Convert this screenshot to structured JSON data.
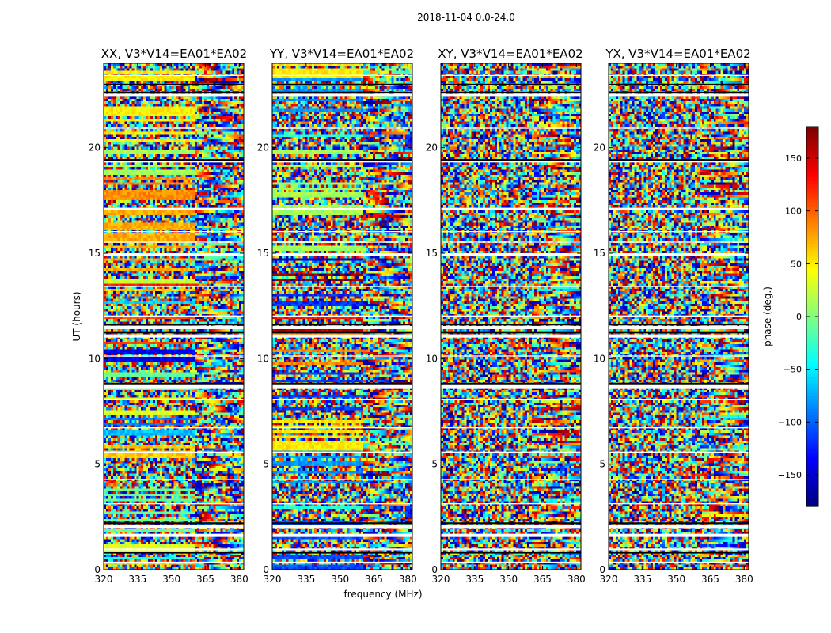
{
  "chart_data": {
    "type": "heatmap",
    "suptitle": "2018-11-04 0.0-24.0",
    "xlabel": "frequency (MHz)",
    "ylabel": "UT (hours)",
    "xlim": [
      320,
      382
    ],
    "ylim": [
      0,
      24
    ],
    "xticks": [
      320,
      335,
      350,
      365,
      380
    ],
    "yticks": [
      0,
      5,
      10,
      15,
      20
    ],
    "panels": [
      {
        "title": "XX, V3*V14=EA01*EA02",
        "pol": "XX"
      },
      {
        "title": "YY, V3*V14=EA01*EA02",
        "pol": "YY"
      },
      {
        "title": "XY, V3*V14=EA01*EA02",
        "pol": "XY"
      },
      {
        "title": "YX, V3*V14=EA01*EA02",
        "pol": "YX"
      }
    ],
    "colorbar": {
      "label": "phase (deg.)",
      "range": [
        -180,
        180
      ],
      "ticks": [
        150,
        100,
        50,
        0,
        -50,
        -100,
        -150
      ],
      "tick_labels": [
        "150",
        "100",
        "50",
        "0",
        "−50",
        "−100",
        "−150"
      ],
      "colormap": "jet"
    },
    "blank_ut_intervals": [
      [
        0.33,
        0.38
      ],
      [
        0.92,
        1.0
      ],
      [
        1.55,
        1.7
      ],
      [
        1.97,
        2.12
      ],
      [
        3.1,
        3.15
      ],
      [
        4.25,
        4.3
      ],
      [
        5.55,
        5.6
      ],
      [
        6.7,
        6.75
      ],
      [
        8.05,
        8.1
      ],
      [
        8.6,
        8.8
      ],
      [
        10.1,
        10.15
      ],
      [
        11.0,
        11.15
      ],
      [
        11.4,
        11.55
      ],
      [
        12.0,
        12.05
      ],
      [
        13.4,
        13.45
      ],
      [
        14.85,
        15.0
      ],
      [
        15.5,
        15.55
      ],
      [
        16.0,
        16.05
      ],
      [
        17.05,
        17.15
      ],
      [
        19.3,
        19.35
      ],
      [
        20.9,
        20.95
      ],
      [
        22.45,
        22.55
      ],
      [
        23.4,
        23.45
      ]
    ],
    "black_ut_intervals": [
      [
        0.8,
        0.84
      ],
      [
        2.2,
        2.24
      ],
      [
        8.8,
        8.86
      ],
      [
        11.2,
        11.3
      ],
      [
        11.6,
        11.66
      ],
      [
        19.4,
        19.46
      ],
      [
        22.6,
        22.66
      ],
      [
        23.0,
        23.03
      ]
    ]
  }
}
